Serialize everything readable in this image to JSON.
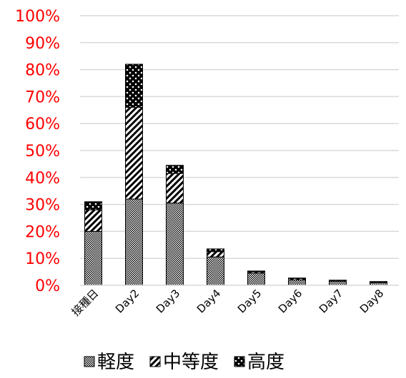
{
  "chart_data": {
    "type": "bar",
    "stacked": true,
    "categories": [
      "接種日",
      "Day2",
      "Day3",
      "Day4",
      "Day5",
      "Day6",
      "Day7",
      "Day8"
    ],
    "series": [
      {
        "name": "軽度",
        "pattern": "dots-fine",
        "values": [
          20,
          32,
          30.5,
          10.5,
          4.5,
          2,
          1.5,
          1
        ]
      },
      {
        "name": "中等度",
        "pattern": "diagonal",
        "values": [
          8,
          34,
          11,
          2,
          0.5,
          0.5,
          0.3,
          0.3
        ]
      },
      {
        "name": "高度",
        "pattern": "dots-coarse",
        "values": [
          3,
          16,
          3,
          1,
          0.3,
          0.2,
          0.1,
          0.1
        ]
      }
    ],
    "ylim": [
      0,
      100
    ],
    "yticks": [
      "0%",
      "10%",
      "20%",
      "30%",
      "40%",
      "50%",
      "60%",
      "70%",
      "80%",
      "90%",
      "100%"
    ],
    "ytick_values": [
      0,
      10,
      20,
      30,
      40,
      50,
      60,
      70,
      80,
      90,
      100
    ],
    "ytick_color": "#ff0000",
    "grid": true,
    "legend_position": "bottom",
    "xlabel": "",
    "ylabel": "",
    "title": ""
  }
}
